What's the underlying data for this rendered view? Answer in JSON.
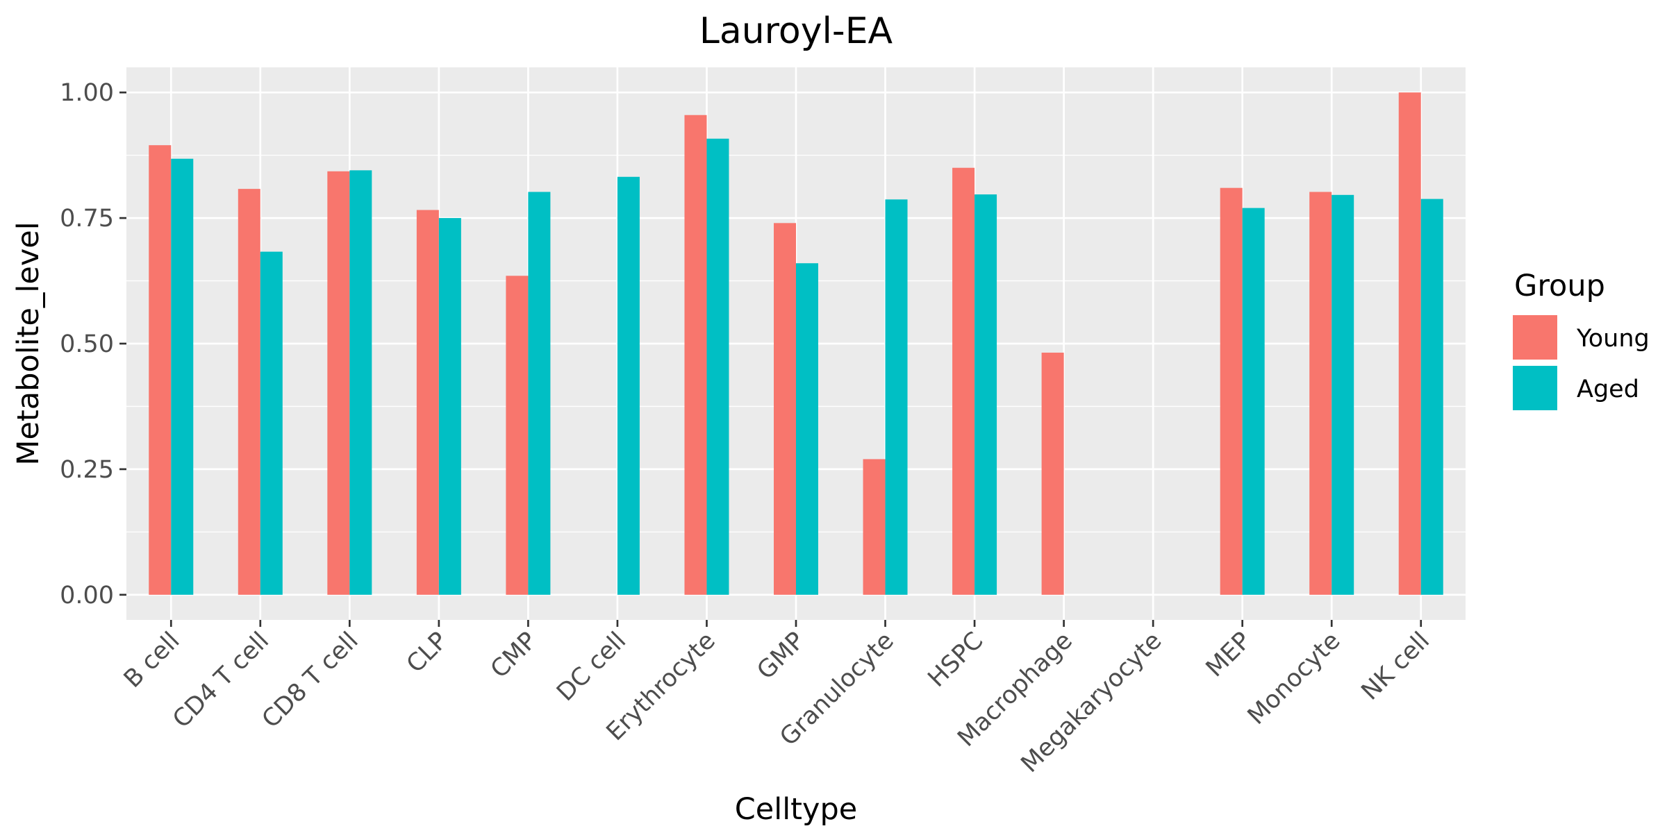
{
  "chart_data": {
    "type": "bar",
    "title": "Lauroyl-EA",
    "xlabel": "Celltype",
    "ylabel": "Metabolite_level",
    "categories": [
      "B cell",
      "CD4 T cell",
      "CD8 T cell",
      "CLP",
      "CMP",
      "DC cell",
      "Erythrocyte",
      "GMP",
      "Granulocyte",
      "HSPC",
      "Macrophage",
      "Megakaryocyte",
      "MEP",
      "Monocyte",
      "NK cell"
    ],
    "series": [
      {
        "name": "Young",
        "color": "#F8766D",
        "values": [
          0.895,
          0.808,
          0.843,
          0.766,
          0.635,
          null,
          0.955,
          0.74,
          0.27,
          0.85,
          0.482,
          null,
          0.81,
          0.802,
          1.0
        ]
      },
      {
        "name": "Aged",
        "color": "#00BFC4",
        "values": [
          0.868,
          0.683,
          0.845,
          0.75,
          0.802,
          0.832,
          0.908,
          0.66,
          0.787,
          0.797,
          null,
          null,
          0.77,
          0.796,
          0.788
        ]
      }
    ],
    "ylim": [
      -0.05,
      1.05
    ],
    "yticks": [
      "0.00",
      "0.25",
      "0.50",
      "0.75",
      "1.00"
    ],
    "legend": {
      "title": "Group",
      "position": "right"
    },
    "grid": true,
    "panel_background": "#EBEBEB"
  }
}
